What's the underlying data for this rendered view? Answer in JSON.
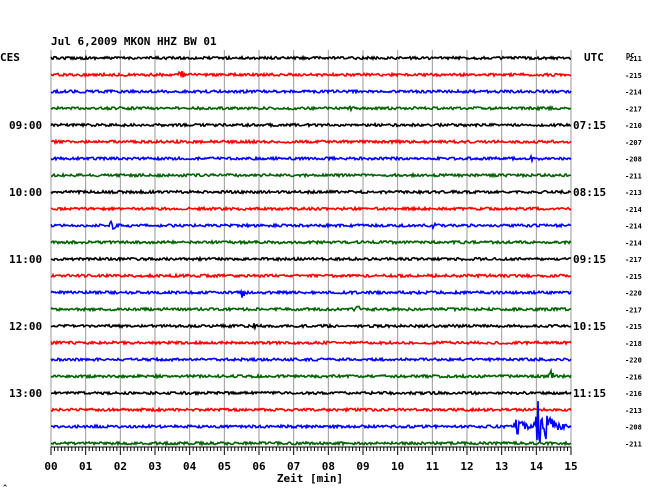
{
  "chart_data": {
    "type": "line",
    "title": "Jul 6,2009   MKON HHZ BW 01",
    "left_label": "CES",
    "right_label": "UTC",
    "right_dc_label": "DC",
    "xlabel": "Zeit [min]",
    "xlim": [
      0,
      15
    ],
    "x_tick_labels": [
      "00",
      "01",
      "02",
      "03",
      "04",
      "05",
      "06",
      "07",
      "08",
      "09",
      "10",
      "11",
      "12",
      "13",
      "14",
      "15"
    ],
    "grid": true,
    "footer_mark": "^",
    "left_time_labels": [
      {
        "row": 4,
        "label": "09:00"
      },
      {
        "row": 8,
        "label": "10:00"
      },
      {
        "row": 12,
        "label": "11:00"
      },
      {
        "row": 16,
        "label": "12:00"
      },
      {
        "row": 20,
        "label": "13:00"
      }
    ],
    "right_time_labels": [
      {
        "row": 4,
        "label": "07:15"
      },
      {
        "row": 8,
        "label": "08:15"
      },
      {
        "row": 12,
        "label": "09:15"
      },
      {
        "row": 16,
        "label": "10:15"
      },
      {
        "row": 20,
        "label": "11:15"
      }
    ],
    "dc_values": [
      "-211",
      "-215",
      "-214",
      "-217",
      "-210",
      "-207",
      "-208",
      "-211",
      "-213",
      "-214",
      "-214",
      "-214",
      "-217",
      "-215",
      "-220",
      "-217",
      "-215",
      "-218",
      "-220",
      "-216",
      "-216",
      "-213",
      "-208",
      "-211"
    ],
    "trace_colors": [
      "#000000",
      "#ff0000",
      "#0000ff",
      "#006400"
    ],
    "events": [
      {
        "row": 1,
        "minute": 3.7,
        "amplitude": 9,
        "duration": 0.3
      },
      {
        "row": 3,
        "minute": 8.6,
        "amplitude": 3,
        "duration": 0.4
      },
      {
        "row": 6,
        "minute": 13.8,
        "amplitude": 4,
        "duration": 0.8
      },
      {
        "row": 10,
        "minute": 1.7,
        "amplitude": 5,
        "duration": 0.8
      },
      {
        "row": 10,
        "minute": 11.0,
        "amplitude": 3,
        "duration": 0.6
      },
      {
        "row": 14,
        "minute": 5.5,
        "amplitude": 6,
        "duration": 0.4
      },
      {
        "row": 15,
        "minute": 8.8,
        "amplitude": 7,
        "duration": 0.3
      },
      {
        "row": 16,
        "minute": 5.8,
        "amplitude": 6,
        "duration": 0.3
      },
      {
        "row": 19,
        "minute": 14.4,
        "amplitude": 8,
        "duration": 0.3
      },
      {
        "row": 22,
        "minute": 13.4,
        "amplitude": 10,
        "duration": 0.8
      },
      {
        "row": 22,
        "minute": 14.0,
        "amplitude": 30,
        "duration": 1.0
      }
    ]
  }
}
